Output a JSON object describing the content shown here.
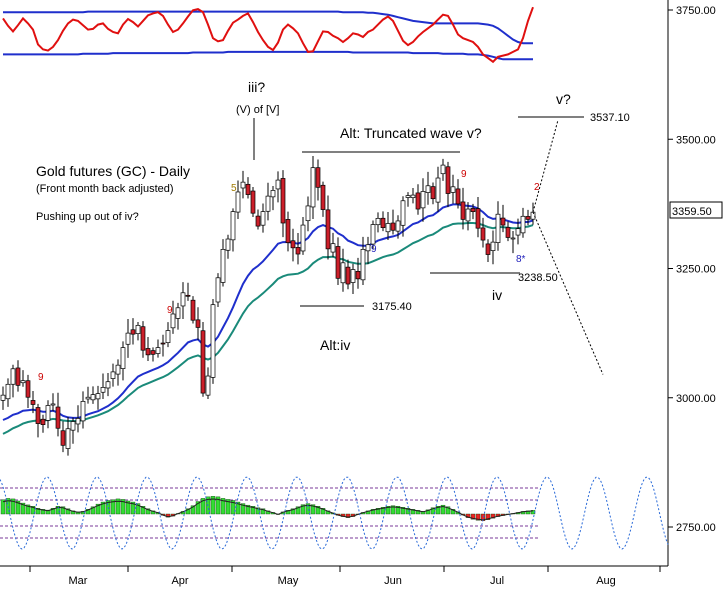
{
  "chart_data": {
    "type": "candlestick",
    "title": "Gold futures (GC) - Daily",
    "subtitle": "(Front month back adjusted)",
    "note": "Pushing up out of iv?",
    "ylim": [
      2700,
      3780
    ],
    "y_ticks": [
      2750,
      3000,
      3250,
      3500,
      3750
    ],
    "y_tick_labels": [
      "2750.00",
      "3000.00",
      "3250.00",
      "3500.00",
      "3750.00"
    ],
    "x_tick_labels": [
      "Mar",
      "Apr",
      "May",
      "Jun",
      "Jul",
      "Aug"
    ],
    "last_price": "3359.50",
    "price_levels": [
      {
        "label": "3537.10",
        "value": 3537.1
      },
      {
        "label": "3175.40",
        "value": 3175.4
      },
      {
        "label": "3238.50",
        "value": 3238.5
      }
    ],
    "wave_labels": [
      "iii?",
      "(V) of [V]",
      "Alt: Truncated wave v?",
      "v?",
      "Alt:iv",
      "iv"
    ],
    "count_labels": [
      "9",
      "9",
      "5",
      "9",
      "9",
      "2",
      "8*"
    ],
    "series": [
      {
        "name": "",
        "values": [
          3005,
          3026,
          3056,
          3024,
          3033,
          3001,
          2987,
          2950,
          2948,
          2985,
          2988,
          2941,
          2908,
          2940,
          2954,
          2960,
          2993,
          3001,
          3006,
          3008,
          3020,
          3031,
          3050,
          3063,
          3097,
          3125,
          3123,
          3140,
          3092,
          3083,
          3084,
          3097,
          3105,
          3130,
          3162,
          3174,
          3203,
          3197,
          3150,
          3136,
          3009,
          3042,
          3180,
          3232,
          3287,
          3307,
          3360,
          3398,
          3417,
          3393,
          3357,
          3332,
          3360,
          3390,
          3401,
          3421,
          3338,
          3300,
          3290,
          3278,
          3334,
          3371,
          3445,
          3407,
          3364,
          3288,
          3298,
          3231,
          3261,
          3220,
          3248,
          3230,
          3287,
          3296,
          3335,
          3347,
          3329,
          3337,
          3324,
          3342,
          3381,
          3391,
          3392,
          3365,
          3399,
          3410,
          3385,
          3425,
          3450,
          3395,
          3408,
          3375,
          3345,
          3365,
          3360,
          3328,
          3305,
          3277,
          3301,
          3355,
          3334,
          3310,
          3309,
          3327,
          3351,
          3345,
          3359
        ]
      },
      {
        "name": "",
        "values": [
          2957,
          2961,
          2967,
          2970,
          2975,
          2976,
          2977,
          2975,
          2973,
          2973,
          2975,
          2971,
          2965,
          2962,
          2961,
          2961,
          2964,
          2968,
          2971,
          2974,
          2979,
          2984,
          2991,
          2999,
          3009,
          3021,
          3031,
          3041,
          3046,
          3050,
          3054,
          3058,
          3063,
          3069,
          3078,
          3087,
          3097,
          3107,
          3111,
          3113,
          3103,
          3099,
          3106,
          3118,
          3136,
          3154,
          3175,
          3198,
          3220,
          3236,
          3248,
          3255,
          3264,
          3275,
          3286,
          3298,
          3301,
          3301,
          3300,
          3298,
          3302,
          3309,
          3322,
          3330,
          3334,
          3330,
          3327,
          3318,
          3313,
          3304,
          3300,
          3295,
          3294,
          3294,
          3299,
          3304,
          3307,
          3310,
          3312,
          3315,
          3322,
          3329,
          3336,
          3339,
          3345,
          3351,
          3353,
          3360,
          3368,
          3371,
          3374,
          3374,
          3372,
          3371,
          3370,
          3366,
          3359,
          3350,
          3346,
          3347,
          3345,
          3342,
          3339,
          3338,
          3340,
          3340,
          3343
        ]
      },
      {
        "name": "",
        "values": [
          2930,
          2935,
          2941,
          2945,
          2950,
          2953,
          2955,
          2956,
          2956,
          2957,
          2959,
          2958,
          2956,
          2955,
          2955,
          2955,
          2957,
          2960,
          2963,
          2966,
          2970,
          2974,
          2980,
          2986,
          2994,
          3003,
          3011,
          3019,
          3024,
          3028,
          3032,
          3036,
          3040,
          3045,
          3052,
          3059,
          3067,
          3075,
          3079,
          3082,
          3077,
          3074,
          3078,
          3087,
          3100,
          3113,
          3129,
          3146,
          3163,
          3177,
          3187,
          3194,
          3202,
          3211,
          3220,
          3230,
          3235,
          3238,
          3239,
          3240,
          3244,
          3250,
          3260,
          3267,
          3272,
          3272,
          3273,
          3269,
          3268,
          3263,
          3261,
          3259,
          3259,
          3260,
          3264,
          3268,
          3272,
          3275,
          3277,
          3281,
          3287,
          3293,
          3299,
          3303,
          3308,
          3313,
          3316,
          3322,
          3329,
          3332,
          3336,
          3337,
          3337,
          3338,
          3338,
          3337,
          3334,
          3330,
          3328,
          3330,
          3330,
          3329,
          3328,
          3328,
          3330,
          3331,
          3334
        ]
      }
    ],
    "projection": [
      [
        3359,
        3537.1
      ],
      [
        3359,
        3045
      ]
    ],
    "oscillator_top": {
      "red": [
        0.2,
        0.32,
        0.41,
        0.31,
        0.2,
        0.28,
        0.38,
        0.62,
        0.7,
        0.72,
        0.66,
        0.55,
        0.4,
        0.28,
        0.22,
        0.24,
        0.31,
        0.38,
        0.37,
        0.3,
        0.28,
        0.37,
        0.42,
        0.44,
        0.3,
        0.21,
        0.26,
        0.33,
        0.24,
        0.15,
        0.12,
        0.1,
        0.16,
        0.3,
        0.42,
        0.38,
        0.28,
        0.17,
        0.07,
        0.05,
        0.1,
        0.3,
        0.52,
        0.57,
        0.55,
        0.4,
        0.27,
        0.22,
        0.16,
        0.12,
        0.26,
        0.42,
        0.55,
        0.66,
        0.71,
        0.59,
        0.38,
        0.3,
        0.36,
        0.44,
        0.6,
        0.74,
        0.73,
        0.57,
        0.41,
        0.42,
        0.48,
        0.52,
        0.58,
        0.52,
        0.44,
        0.46,
        0.5,
        0.42,
        0.38,
        0.3,
        0.22,
        0.17,
        0.24,
        0.4,
        0.56,
        0.63,
        0.58,
        0.49,
        0.42,
        0.36,
        0.3,
        0.22,
        0.14,
        0.16,
        0.3,
        0.46,
        0.52,
        0.55,
        0.58,
        0.66,
        0.78,
        0.84,
        0.9,
        0.82,
        0.8,
        0.78,
        0.74,
        0.7,
        0.52,
        0.24,
        0.02
      ],
      "blue_upper": [
        0.1,
        0.1,
        0.1,
        0.1,
        0.1,
        0.1,
        0.1,
        0.1,
        0.1,
        0.1,
        0.1,
        0.1,
        0.1,
        0.1,
        0.1,
        0.1,
        0.1,
        0.09,
        0.09,
        0.09,
        0.09,
        0.09,
        0.09,
        0.09,
        0.09,
        0.09,
        0.09,
        0.09,
        0.09,
        0.09,
        0.09,
        0.09,
        0.09,
        0.09,
        0.09,
        0.09,
        0.09,
        0.09,
        0.09,
        0.09,
        0.09,
        0.09,
        0.09,
        0.09,
        0.09,
        0.09,
        0.09,
        0.09,
        0.09,
        0.09,
        0.09,
        0.09,
        0.09,
        0.09,
        0.09,
        0.09,
        0.09,
        0.09,
        0.09,
        0.09,
        0.09,
        0.09,
        0.09,
        0.09,
        0.09,
        0.09,
        0.09,
        0.09,
        0.1,
        0.1,
        0.1,
        0.1,
        0.1,
        0.11,
        0.11,
        0.12,
        0.13,
        0.14,
        0.16,
        0.18,
        0.2,
        0.22,
        0.24,
        0.25,
        0.26,
        0.27,
        0.28,
        0.28,
        0.28,
        0.28,
        0.28,
        0.28,
        0.28,
        0.28,
        0.28,
        0.28,
        0.29,
        0.3,
        0.32,
        0.36,
        0.42,
        0.48,
        0.54,
        0.58,
        0.6,
        0.6,
        0.6
      ],
      "blue_lower": [
        0.78,
        0.78,
        0.78,
        0.78,
        0.78,
        0.78,
        0.78,
        0.78,
        0.78,
        0.78,
        0.78,
        0.78,
        0.78,
        0.78,
        0.78,
        0.78,
        0.77,
        0.77,
        0.77,
        0.77,
        0.77,
        0.77,
        0.76,
        0.76,
        0.76,
        0.76,
        0.76,
        0.76,
        0.76,
        0.76,
        0.76,
        0.76,
        0.76,
        0.76,
        0.76,
        0.76,
        0.76,
        0.76,
        0.75,
        0.75,
        0.75,
        0.75,
        0.75,
        0.75,
        0.75,
        0.74,
        0.74,
        0.74,
        0.74,
        0.74,
        0.74,
        0.74,
        0.74,
        0.74,
        0.74,
        0.74,
        0.74,
        0.74,
        0.74,
        0.74,
        0.74,
        0.74,
        0.74,
        0.74,
        0.74,
        0.74,
        0.74,
        0.74,
        0.74,
        0.74,
        0.75,
        0.75,
        0.75,
        0.75,
        0.75,
        0.75,
        0.75,
        0.75,
        0.75,
        0.75,
        0.75,
        0.75,
        0.76,
        0.76,
        0.76,
        0.76,
        0.76,
        0.76,
        0.77,
        0.77,
        0.77,
        0.77,
        0.77,
        0.78,
        0.78,
        0.78,
        0.79,
        0.8,
        0.82,
        0.84,
        0.86,
        0.86,
        0.86,
        0.86,
        0.86,
        0.86,
        0.86
      ]
    },
    "oscillator_bottom": {
      "bars": [
        0.55,
        0.6,
        0.58,
        0.5,
        0.42,
        0.35,
        0.3,
        0.22,
        0.18,
        0.15,
        0.22,
        0.3,
        0.28,
        0.2,
        0.12,
        0.08,
        0.1,
        0.18,
        0.28,
        0.38,
        0.46,
        0.52,
        0.55,
        0.58,
        0.56,
        0.5,
        0.46,
        0.4,
        0.3,
        0.2,
        0.12,
        0.06,
        -0.05,
        -0.12,
        -0.08,
        0.02,
        0.1,
        0.2,
        0.32,
        0.48,
        0.6,
        0.66,
        0.68,
        0.66,
        0.6,
        0.56,
        0.52,
        0.46,
        0.4,
        0.34,
        0.3,
        0.24,
        0.2,
        0.12,
        0.06,
        -0.02,
        0.08,
        0.14,
        0.2,
        0.28,
        0.36,
        0.4,
        0.36,
        0.3,
        0.22,
        0.12,
        0.04,
        -0.05,
        -0.1,
        -0.14,
        -0.1,
        -0.02,
        0.06,
        0.12,
        0.18,
        0.22,
        0.26,
        0.3,
        0.32,
        0.3,
        0.26,
        0.22,
        0.18,
        0.14,
        0.1,
        0.16,
        0.24,
        0.3,
        0.34,
        0.28,
        0.18,
        0.08,
        -0.04,
        -0.14,
        -0.2,
        -0.24,
        -0.26,
        -0.22,
        -0.16,
        -0.1,
        -0.06,
        -0.02,
        0.02,
        0.06,
        0.1,
        0.12,
        0.14
      ],
      "cycle_period": 16,
      "cycle_amplitude": 0.95
    }
  }
}
